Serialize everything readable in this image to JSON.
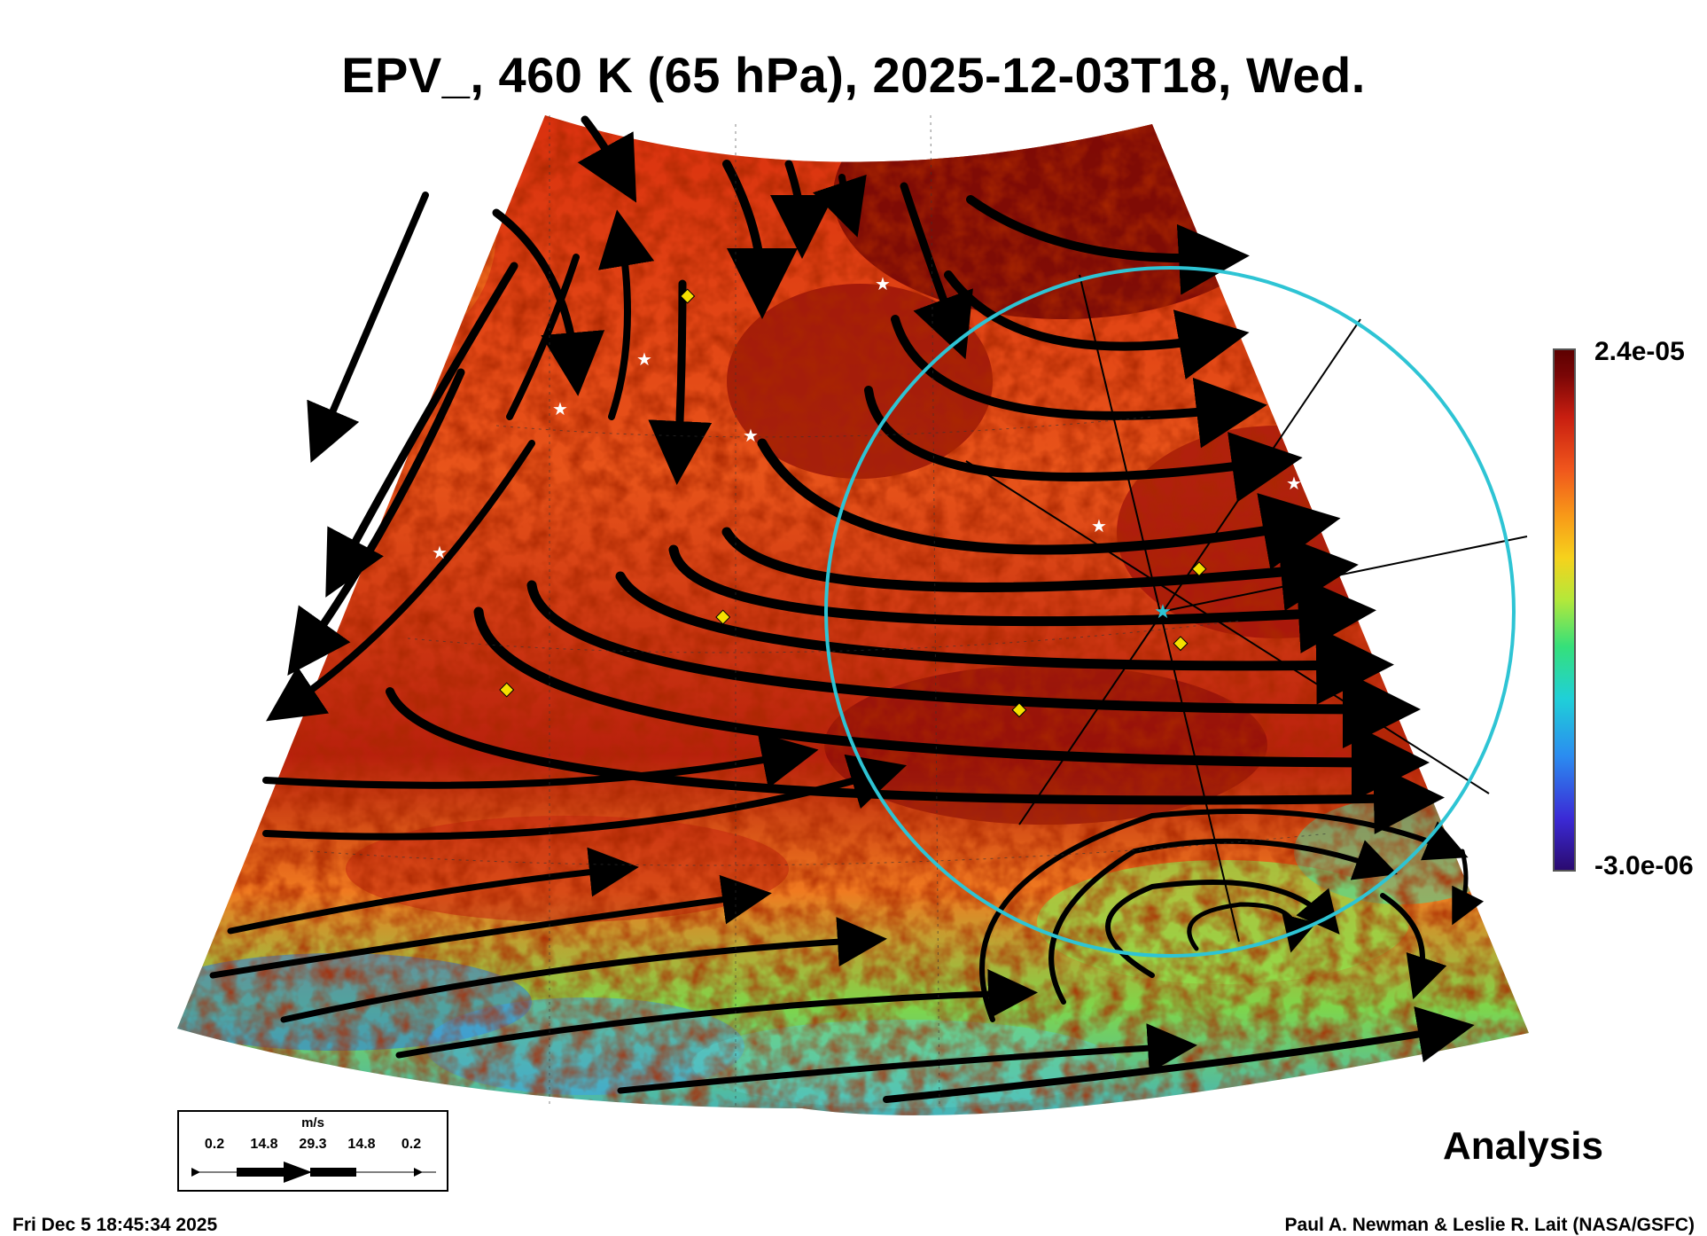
{
  "title": "EPV_, 460 K (65 hPa), 2025-12-03T18, Wed.",
  "colorbar": {
    "max_label": "2.4e-05",
    "min_label": "-3.0e-06",
    "colors": [
      "#2a0a6e",
      "#3b2ad6",
      "#2b8cf0",
      "#1fd0d8",
      "#35e07a",
      "#b4e83a",
      "#f6d21c",
      "#f89a18",
      "#f0561c",
      "#c81e10",
      "#7a0606",
      "#5c0000"
    ]
  },
  "wind_key": {
    "unit": "m/s",
    "values": [
      "0.2",
      "14.8",
      "29.3",
      "14.8",
      "0.2"
    ]
  },
  "product_label": "Analysis",
  "timestamp": "Fri Dec  5 18:45:34 2025",
  "credit": "Paul A. Newman & Leslie R. Lait (NASA/GSFC)",
  "colors": {
    "circle": "#2ec4d4",
    "marker_yellow": "#f5e000",
    "marker_white": "#ffffff",
    "arrows": "#000000"
  }
}
